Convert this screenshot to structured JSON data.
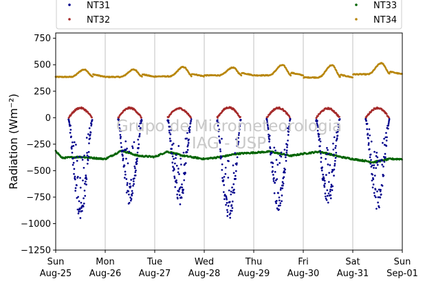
{
  "watermark": {
    "line1": "Grupo de Micrometeorologia",
    "line2": "IAG - USP"
  },
  "chart_data": {
    "type": "scatter",
    "title": "",
    "xlabel": "",
    "ylabel": "Radiation (Wm⁻²)",
    "ylim": [
      -1250,
      800
    ],
    "yticks": [
      750,
      500,
      250,
      0,
      -250,
      -500,
      -750,
      -1000,
      -1250
    ],
    "xlim": [
      "2019-08-25",
      "2019-09-01"
    ],
    "xticks": [
      {
        "day": "Sun",
        "date": "Aug-25"
      },
      {
        "day": "Mon",
        "date": "Aug-26"
      },
      {
        "day": "Tue",
        "date": "Aug-27"
      },
      {
        "day": "Wed",
        "date": "Aug-28"
      },
      {
        "day": "Thu",
        "date": "Aug-29"
      },
      {
        "day": "Fri",
        "date": "Aug-30"
      },
      {
        "day": "Sat",
        "date": "Aug-31"
      },
      {
        "day": "Sun",
        "date": "Sep-01"
      }
    ],
    "grid": "vertical",
    "legend_placement": "top, above plot",
    "series": [
      {
        "name": "NT31",
        "color": "#00008b",
        "daily": [
          {
            "date": "2019-08-25",
            "night": -380,
            "min": -960,
            "noon_hour": 11.5
          },
          {
            "date": "2019-08-26",
            "night": -380,
            "min": -830,
            "noon_hour": 11.5
          },
          {
            "date": "2019-08-27",
            "night": -370,
            "min": -830,
            "noon_hour": 11.5
          },
          {
            "date": "2019-08-28",
            "night": -370,
            "min": -1000,
            "noon_hour": 11.0
          },
          {
            "date": "2019-08-29",
            "night": -360,
            "min": -880,
            "noon_hour": 11.5
          },
          {
            "date": "2019-08-30",
            "night": -370,
            "min": -840,
            "noon_hour": 12.5
          },
          {
            "date": "2019-08-31",
            "night": -380,
            "min": -880,
            "noon_hour": 12.0
          }
        ]
      },
      {
        "name": "NT32",
        "color": "#a52a2a",
        "daily": [
          {
            "date": "2019-08-25",
            "max": 100
          },
          {
            "date": "2019-08-26",
            "max": 100
          },
          {
            "date": "2019-08-27",
            "max": 95
          },
          {
            "date": "2019-08-28",
            "max": 105
          },
          {
            "date": "2019-08-29",
            "max": 100
          },
          {
            "date": "2019-08-30",
            "max": 95
          },
          {
            "date": "2019-08-31",
            "max": 100
          }
        ]
      },
      {
        "name": "NT33",
        "color": "#006400",
        "values_description_points": [
          [
            "2019-08-25T00:00",
            -310
          ],
          [
            "2019-08-25T03:00",
            -380
          ],
          [
            "2019-08-25T12:00",
            -370
          ],
          [
            "2019-08-26T00:00",
            -390
          ],
          [
            "2019-08-26T08:00",
            -310
          ],
          [
            "2019-08-26T16:00",
            -360
          ],
          [
            "2019-08-27T00:00",
            -370
          ],
          [
            "2019-08-27T06:00",
            -320
          ],
          [
            "2019-08-27T14:00",
            -360
          ],
          [
            "2019-08-28T00:00",
            -390
          ],
          [
            "2019-08-28T08:00",
            -370
          ],
          [
            "2019-08-28T16:00",
            -340
          ],
          [
            "2019-08-29T00:00",
            -330
          ],
          [
            "2019-08-29T08:00",
            -320
          ],
          [
            "2019-08-29T18:00",
            -360
          ],
          [
            "2019-08-30T00:00",
            -340
          ],
          [
            "2019-08-30T08:00",
            -320
          ],
          [
            "2019-08-30T18:00",
            -370
          ],
          [
            "2019-08-31T00:00",
            -390
          ],
          [
            "2019-08-31T10:00",
            -420
          ],
          [
            "2019-08-31T18:00",
            -390
          ],
          [
            "2019-09-01T00:00",
            -390
          ]
        ]
      },
      {
        "name": "NT34",
        "color": "#b8860b",
        "daily": [
          {
            "date": "2019-08-25",
            "night": 385,
            "max": 475
          },
          {
            "date": "2019-08-26",
            "night": 385,
            "max": 475
          },
          {
            "date": "2019-08-27",
            "night": 390,
            "max": 505
          },
          {
            "date": "2019-08-28",
            "night": 400,
            "max": 495
          },
          {
            "date": "2019-08-29",
            "night": 400,
            "max": 525
          },
          {
            "date": "2019-08-30",
            "night": 380,
            "max": 530
          },
          {
            "date": "2019-08-31",
            "night": 410,
            "max": 545
          }
        ]
      }
    ]
  }
}
